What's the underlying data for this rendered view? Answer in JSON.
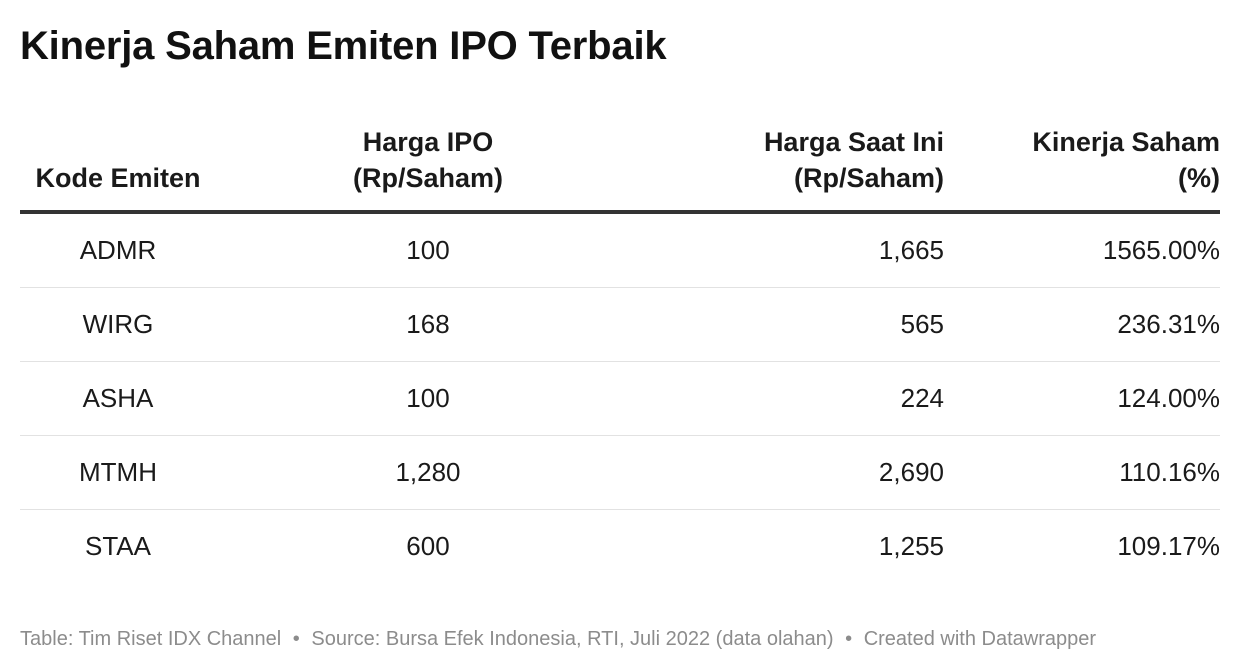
{
  "title": "Kinerja Saham Emiten IPO Terbaik",
  "chart_data": {
    "type": "table",
    "columns": [
      {
        "line1": "Kode Emiten",
        "line2": ""
      },
      {
        "line1": "Harga IPO",
        "line2": "(Rp/Saham)"
      },
      {
        "line1": "Harga Saat Ini",
        "line2": "(Rp/Saham)"
      },
      {
        "line1": "Kinerja Saham",
        "line2": "(%)"
      }
    ],
    "rows": [
      {
        "code": "ADMR",
        "ipo": "100",
        "current": "1,665",
        "performance": "1565.00%"
      },
      {
        "code": "WIRG",
        "ipo": "168",
        "current": "565",
        "performance": "236.31%"
      },
      {
        "code": "ASHA",
        "ipo": "100",
        "current": "224",
        "performance": "124.00%"
      },
      {
        "code": "MTMH",
        "ipo": "1,280",
        "current": "2,690",
        "performance": "110.16%"
      },
      {
        "code": "STAA",
        "ipo": "600",
        "current": "1,255",
        "performance": "109.17%"
      }
    ]
  },
  "footer": {
    "table_credit": "Table: Tim Riset IDX Channel",
    "source": "Source: Bursa Efek Indonesia, RTI, Juli 2022 (data olahan)",
    "created_with": "Created with Datawrapper",
    "separator": "•"
  }
}
